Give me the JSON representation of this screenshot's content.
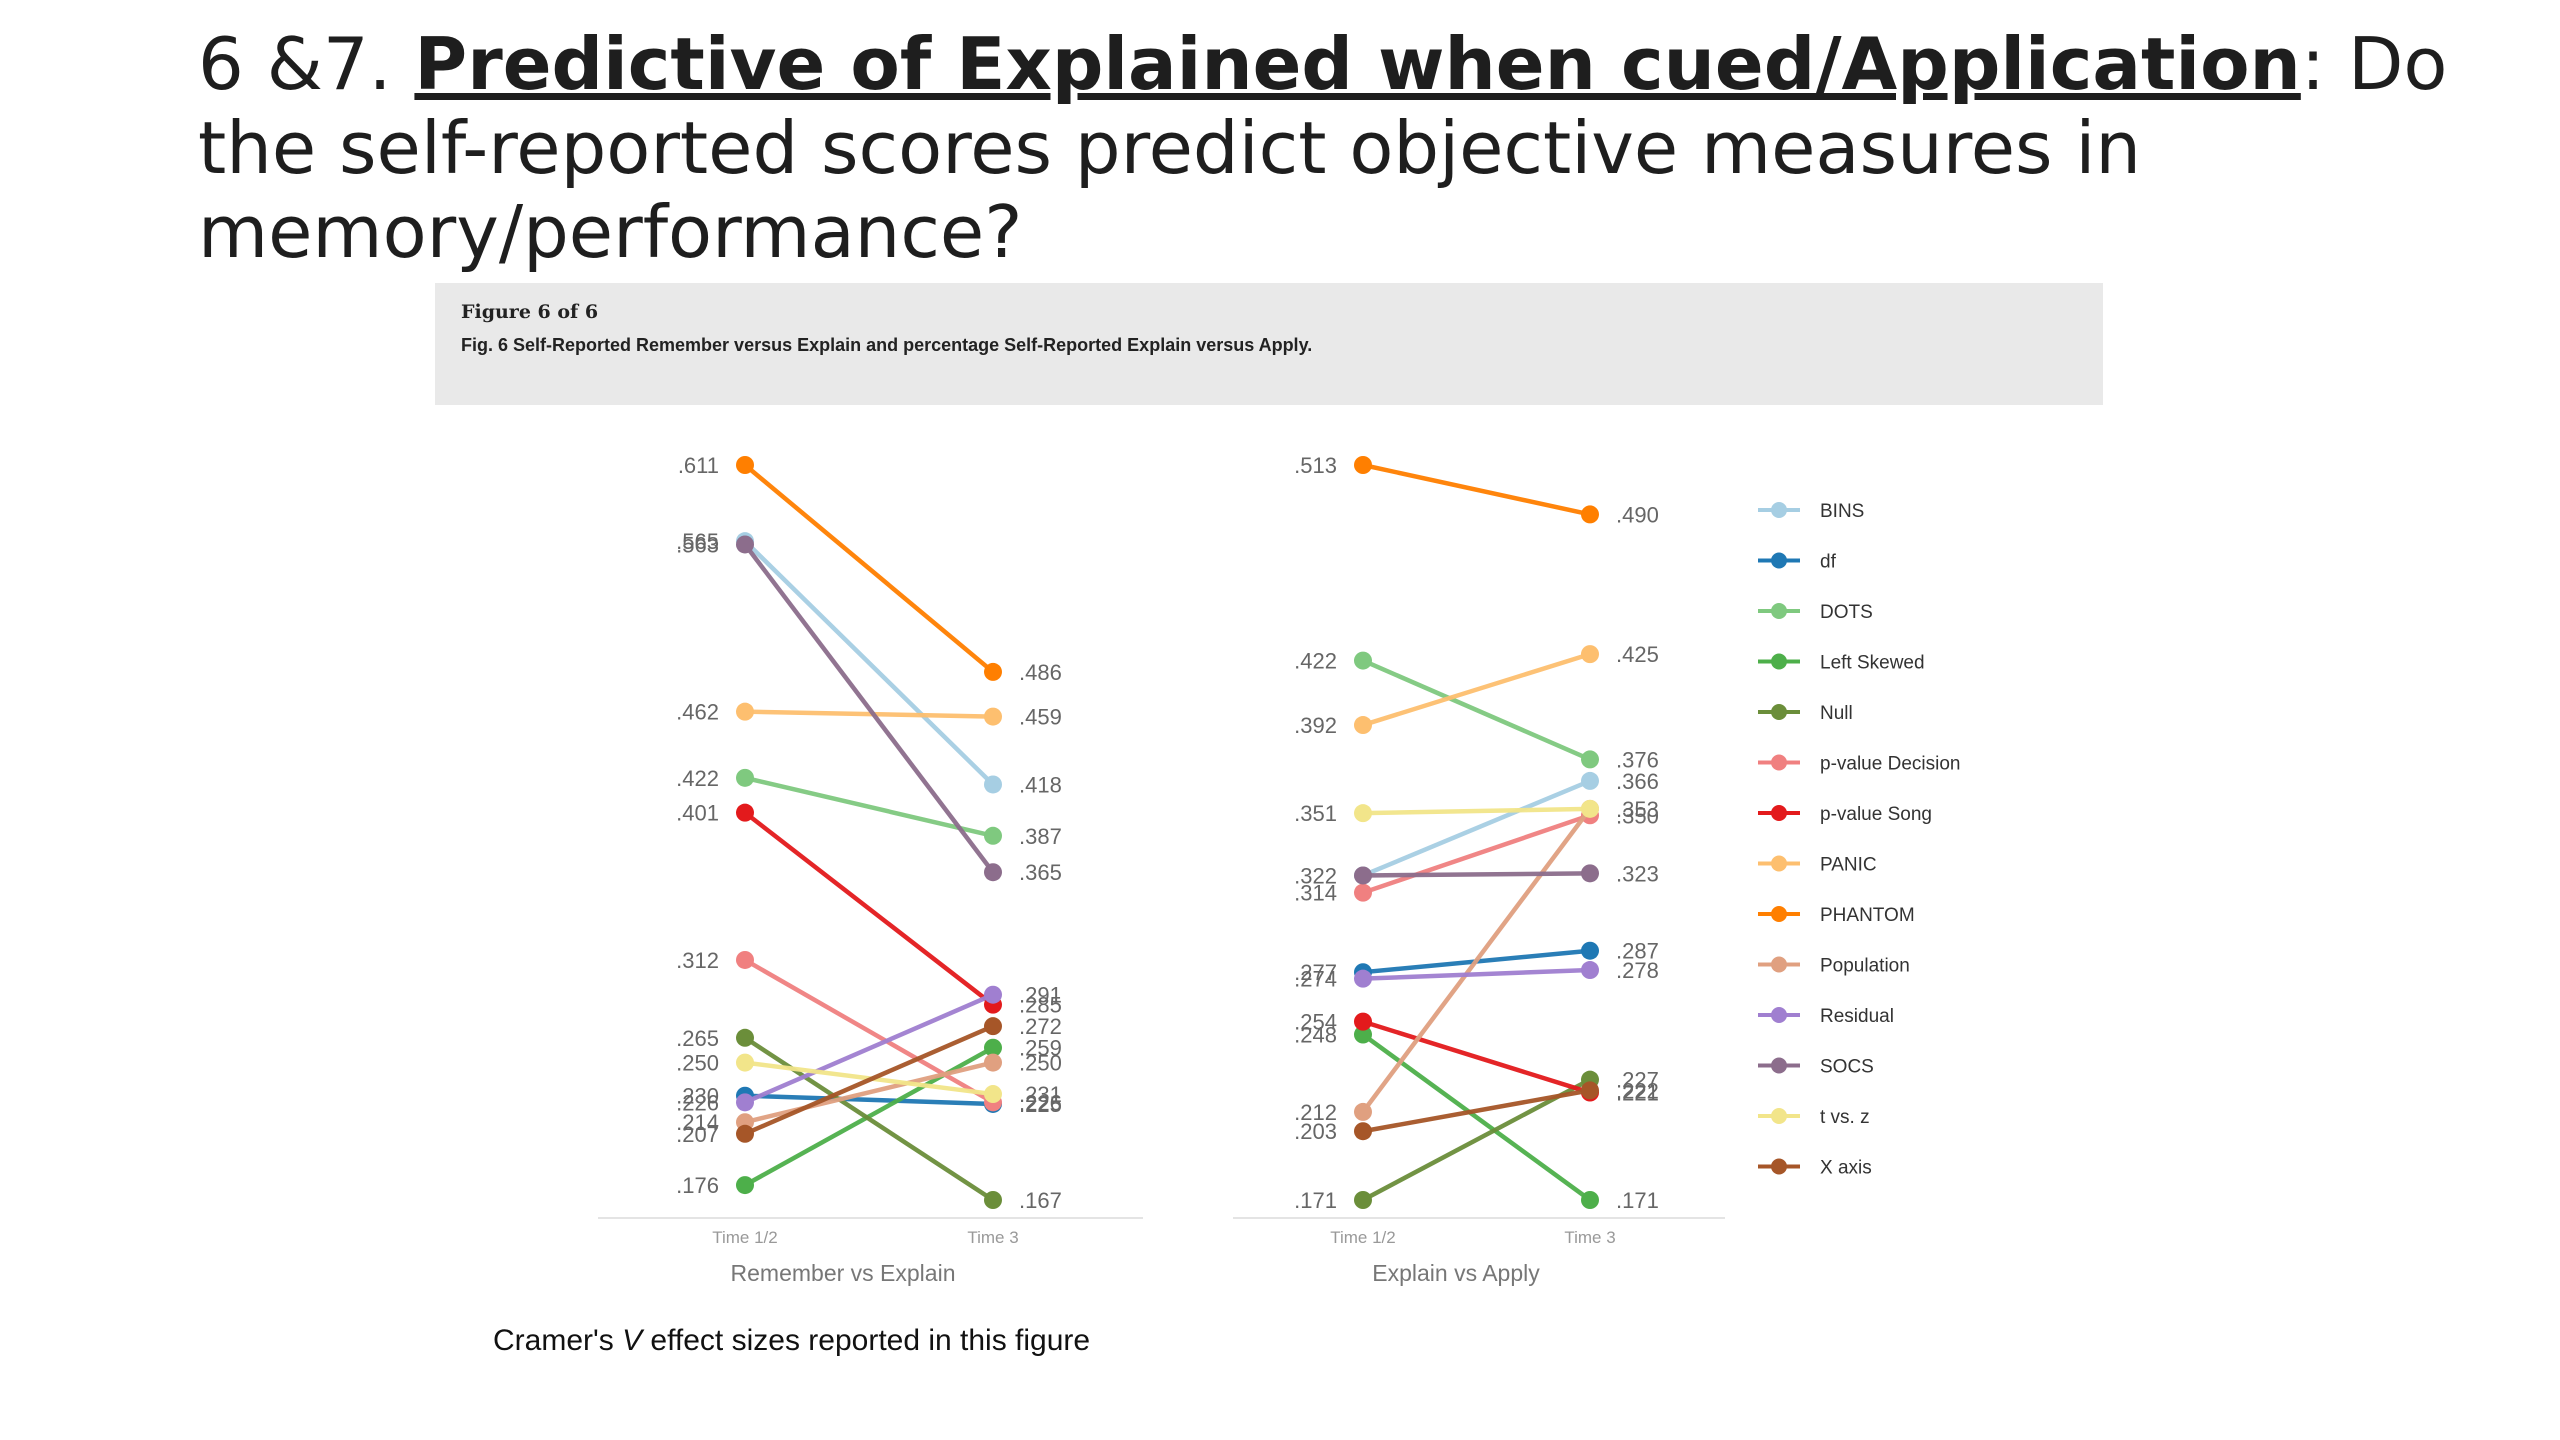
{
  "slide": {
    "title_prefix": "6 &7. ",
    "title_strong": "Predictive of Explained when cued/Application",
    "title_rest": ": Do the self-reported scores predict objective measures in memory/performance?"
  },
  "figure": {
    "number": "Figure 6 of 6",
    "caption": "Fig. 6 Self-Reported Remember versus Explain and percentage Self-Reported Explain versus Apply."
  },
  "footnote": {
    "before": "Cramer's ",
    "italic": "V",
    "after": " effect sizes reported in this figure"
  },
  "legend": [
    {
      "name": "BINS",
      "color": "#a6cee3"
    },
    {
      "name": "df",
      "color": "#1f78b4"
    },
    {
      "name": "DOTS",
      "color": "#7fc97f"
    },
    {
      "name": "Left Skewed",
      "color": "#4daf4a"
    },
    {
      "name": "Null",
      "color": "#6b8e3a"
    },
    {
      "name": "p-value Decision",
      "color": "#f08080"
    },
    {
      "name": "p-value Song",
      "color": "#e31a1c"
    },
    {
      "name": "PANIC",
      "color": "#fdbf6f"
    },
    {
      "name": "PHANTOM",
      "color": "#ff7f00"
    },
    {
      "name": "Population",
      "color": "#e0a080"
    },
    {
      "name": "Residual",
      "color": "#a07fd0"
    },
    {
      "name": "SOCS",
      "color": "#8c6d8c"
    },
    {
      "name": "t vs. z",
      "color": "#f2e58a"
    },
    {
      "name": "X axis",
      "color": "#a65628"
    }
  ],
  "chart_data": [
    {
      "type": "line",
      "title": "",
      "xlabel": "Remember vs Explain",
      "ylabel": "",
      "categories": [
        "Time 1/2",
        "Time 3"
      ],
      "ylim": [
        0.167,
        0.611
      ],
      "series": [
        {
          "name": "BINS",
          "values": [
            0.565,
            0.418
          ]
        },
        {
          "name": "df",
          "values": [
            0.23,
            0.225
          ]
        },
        {
          "name": "DOTS",
          "values": [
            0.422,
            0.387
          ]
        },
        {
          "name": "Left Skewed",
          "values": [
            0.176,
            0.259
          ]
        },
        {
          "name": "Null",
          "values": [
            0.265,
            0.167
          ]
        },
        {
          "name": "p-value Decision",
          "values": [
            0.312,
            0.226
          ]
        },
        {
          "name": "p-value Song",
          "values": [
            0.401,
            0.285
          ]
        },
        {
          "name": "PANIC",
          "values": [
            0.462,
            0.459
          ]
        },
        {
          "name": "PHANTOM",
          "values": [
            0.611,
            0.486
          ]
        },
        {
          "name": "Population",
          "values": [
            0.214,
            0.25
          ]
        },
        {
          "name": "Residual",
          "values": [
            0.226,
            0.291
          ]
        },
        {
          "name": "SOCS",
          "values": [
            0.563,
            0.365
          ]
        },
        {
          "name": "t vs. z",
          "values": [
            0.25,
            0.231
          ]
        },
        {
          "name": "X axis",
          "values": [
            0.207,
            0.272
          ]
        }
      ],
      "left_labels": [
        ".611",
        ".565",
        ".563",
        ".462",
        ".422",
        ".401",
        ".312",
        ".265",
        ".250",
        ".230",
        ".226",
        ".214",
        ".207",
        ".176"
      ],
      "right_labels": [
        ".486",
        ".459",
        ".418",
        ".387",
        ".365",
        ".291",
        ".285",
        ".272",
        ".259",
        ".250",
        ".231",
        ".226",
        ".225",
        ".167"
      ]
    },
    {
      "type": "line",
      "title": "",
      "xlabel": "Explain vs Apply",
      "ylabel": "",
      "categories": [
        "Time 1/2",
        "Time 3"
      ],
      "ylim": [
        0.171,
        0.513
      ],
      "series": [
        {
          "name": "BINS",
          "values": [
            0.322,
            0.366
          ]
        },
        {
          "name": "df",
          "values": [
            0.277,
            0.287
          ]
        },
        {
          "name": "DOTS",
          "values": [
            0.422,
            0.376
          ]
        },
        {
          "name": "Left Skewed",
          "values": [
            0.248,
            0.171
          ]
        },
        {
          "name": "Null",
          "values": [
            0.171,
            0.227
          ]
        },
        {
          "name": "p-value Decision",
          "values": [
            0.314,
            0.35
          ]
        },
        {
          "name": "p-value Song",
          "values": [
            0.254,
            0.221
          ]
        },
        {
          "name": "PANIC",
          "values": [
            0.392,
            0.425
          ]
        },
        {
          "name": "PHANTOM",
          "values": [
            0.513,
            0.49
          ]
        },
        {
          "name": "Population",
          "values": [
            0.212,
            0.353
          ]
        },
        {
          "name": "Residual",
          "values": [
            0.274,
            0.278
          ]
        },
        {
          "name": "SOCS",
          "values": [
            0.322,
            0.323
          ]
        },
        {
          "name": "t vs. z",
          "values": [
            0.351,
            0.353
          ]
        },
        {
          "name": "X axis",
          "values": [
            0.203,
            0.222
          ]
        }
      ],
      "left_labels": [
        ".513",
        ".422",
        ".392",
        ".351",
        ".322",
        ".314",
        ".277",
        ".274",
        ".254",
        ".248",
        ".212",
        ".203",
        ".171"
      ],
      "right_labels": [
        ".490",
        ".425",
        ".376",
        ".366",
        ".353",
        ".350",
        ".323",
        ".287",
        ".278",
        ".227",
        ".222",
        ".221",
        ".171"
      ]
    }
  ]
}
